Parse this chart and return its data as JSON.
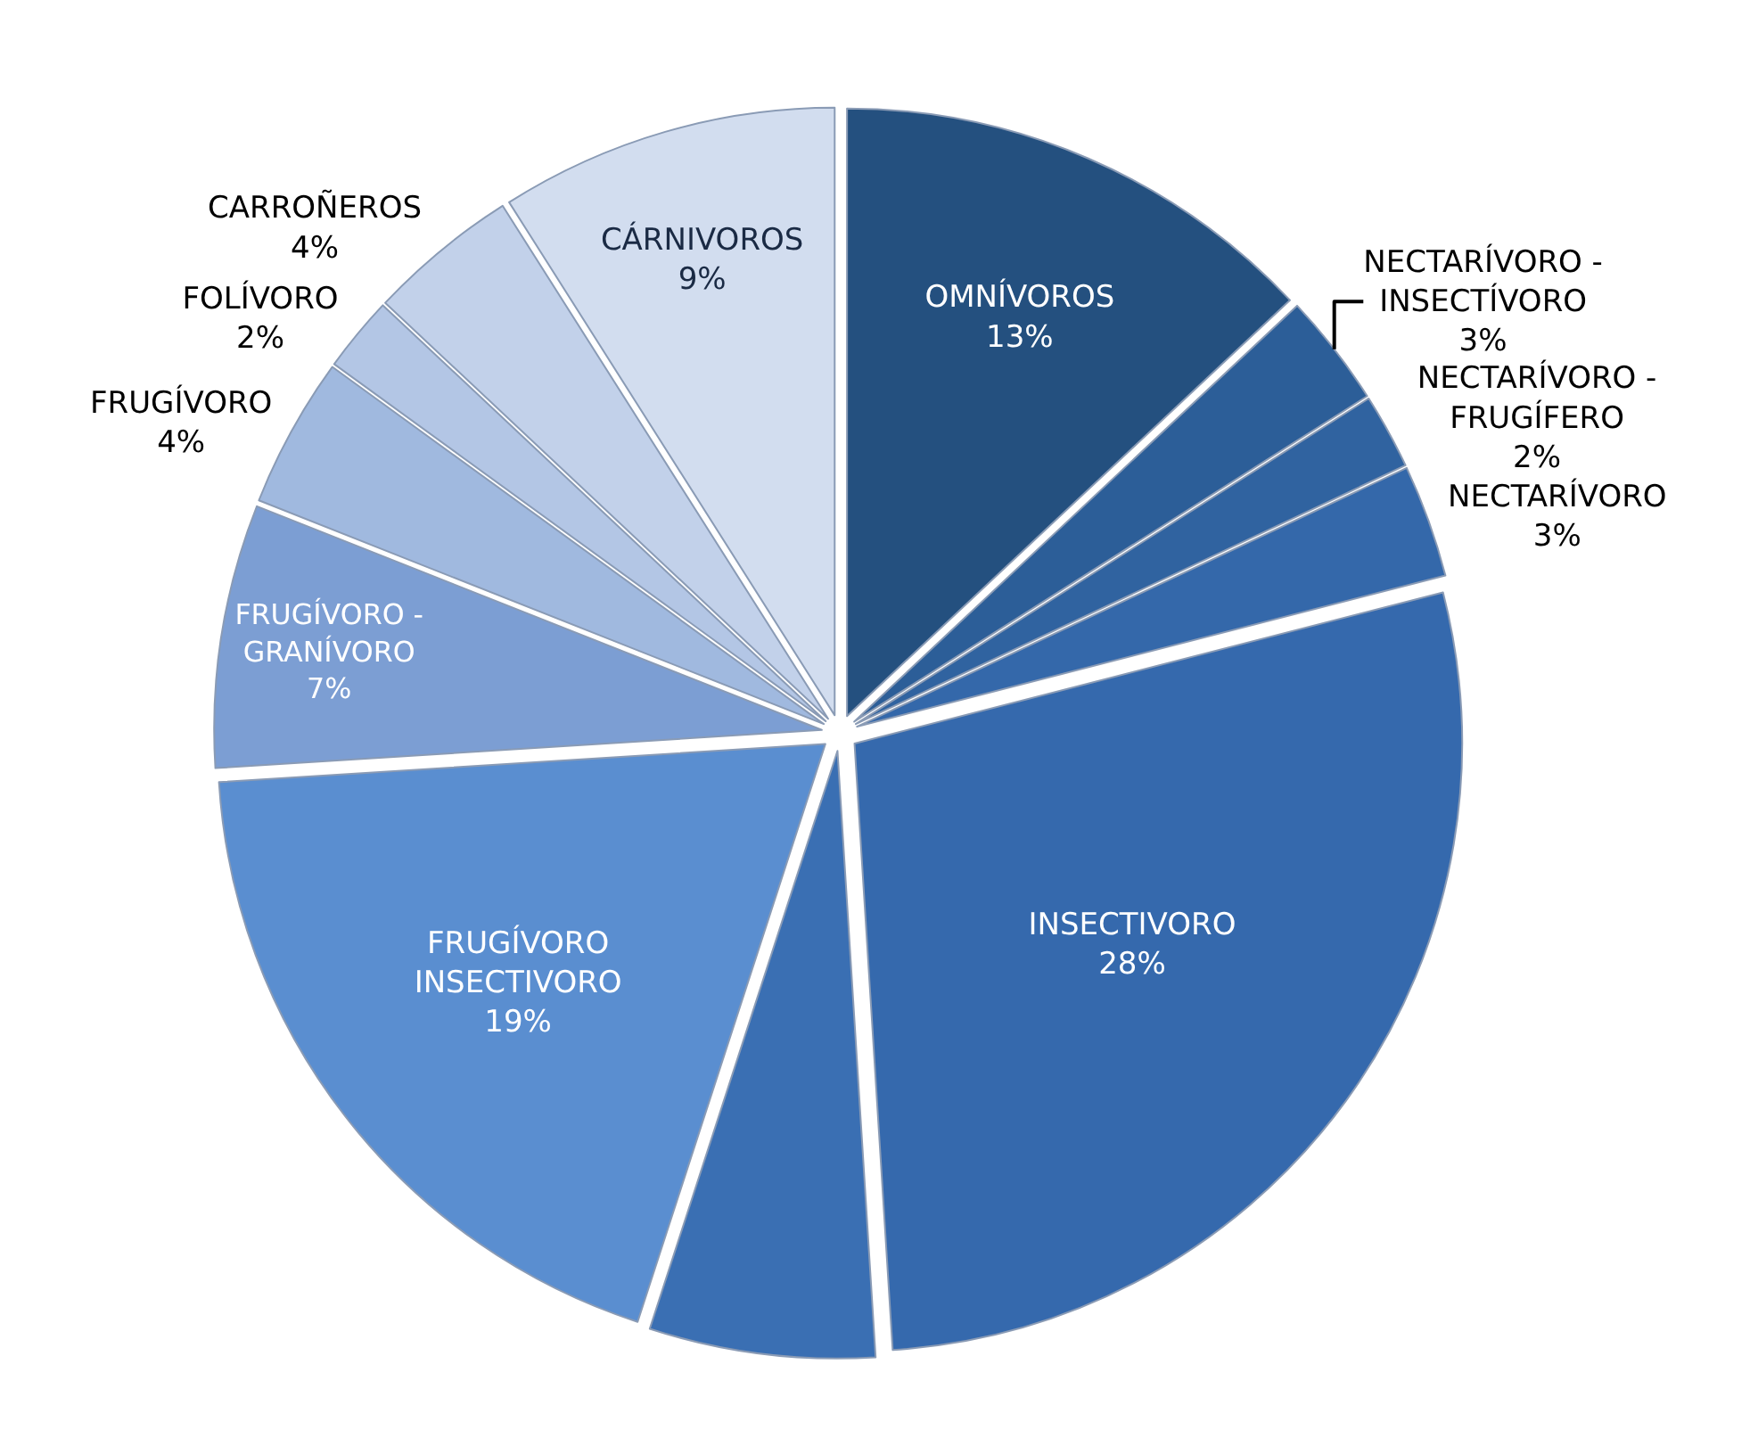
{
  "chart_data": {
    "type": "pie",
    "categories": [
      "OMNÍVOROS",
      "NECTARÍVORO - INSECTÍVORO",
      "NECTARÍVORO - FRUGÍFERO",
      "NECTARÍVORO",
      "INSECTIVORO",
      null,
      "FRUGÍVORO INSECTIVORO",
      "FRUGÍVORO - GRANÍVORO",
      "FRUGÍVORO",
      "FOLÍVORO",
      "CARROÑEROS",
      "CÁRNIVOROS"
    ],
    "values": [
      13,
      3,
      2,
      3,
      28,
      6,
      19,
      7,
      4,
      2,
      4,
      9
    ],
    "value_labels": [
      "13%",
      "3%",
      "2%",
      "3%",
      "28%",
      null,
      "19%",
      "7%",
      "4%",
      "2%",
      "4%",
      "9%"
    ],
    "colors": [
      "#24507f",
      "#2c5e98",
      "#3063a0",
      "#3468aa",
      "#3569ad",
      "#3a6fb3",
      "#5a8ed0",
      "#7c9ed3",
      "#a0b9df",
      "#b3c6e5",
      "#c2d1ea",
      "#d2ddef"
    ],
    "legend": false
  }
}
